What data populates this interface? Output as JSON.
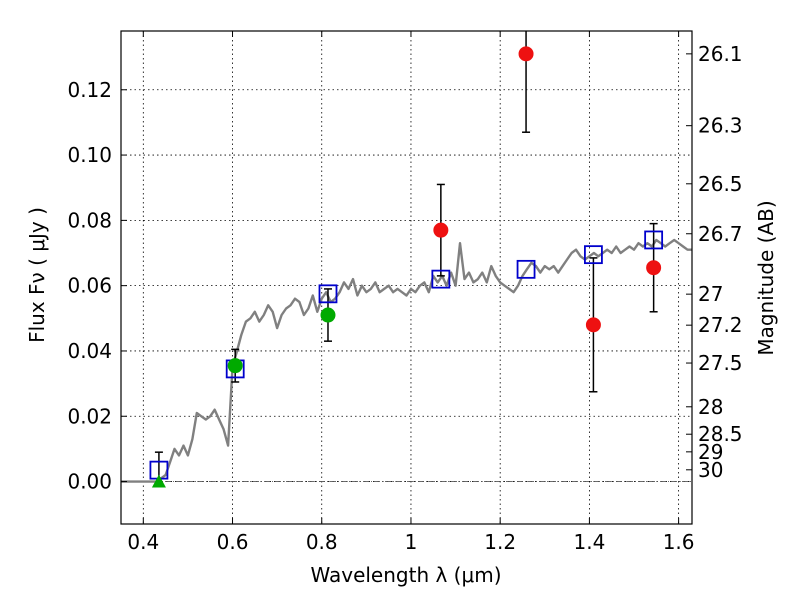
{
  "chart_data": {
    "type": "scatter",
    "xlabel": "Wavelength  λ (μm)",
    "ylabel": "Flux  Fν ( μJy )",
    "ylabel_right": "Magnitude (AB)",
    "xlim": [
      0.35,
      1.63
    ],
    "ylim": [
      -0.013,
      0.138
    ],
    "grid": true,
    "x_ticks": [
      0.4,
      0.6,
      0.8,
      1.0,
      1.2,
      1.4,
      1.6
    ],
    "x_tick_labels": [
      "0.4",
      "0.6",
      "0.8",
      "1",
      "1.2",
      "1.4",
      "1.6"
    ],
    "y_ticks": [
      0.0,
      0.02,
      0.04,
      0.06,
      0.08,
      0.1,
      0.12
    ],
    "y_tick_labels": [
      "0.00",
      "0.02",
      "0.04",
      "0.06",
      "0.08",
      "0.10",
      "0.12"
    ],
    "magnitude_ticks": [
      {
        "label": "26.1",
        "flux": 0.131
      },
      {
        "label": "26.3",
        "flux": 0.109
      },
      {
        "label": "26.5",
        "flux": 0.0912
      },
      {
        "label": "26.7",
        "flux": 0.0759
      },
      {
        "label": "27",
        "flux": 0.0574
      },
      {
        "label": "27.2",
        "flux": 0.0479
      },
      {
        "label": "27.5",
        "flux": 0.0363
      },
      {
        "label": "28",
        "flux": 0.0229
      },
      {
        "label": "28.5",
        "flux": 0.0145
      },
      {
        "label": "29",
        "flux": 0.0091
      },
      {
        "label": "30",
        "flux": 0.0036
      }
    ],
    "series": [
      {
        "kind": "model-spectrum",
        "color": "#808080",
        "x": [
          0.35,
          0.4,
          0.43,
          0.45,
          0.46,
          0.47,
          0.48,
          0.49,
          0.5,
          0.51,
          0.52,
          0.53,
          0.54,
          0.55,
          0.56,
          0.57,
          0.58,
          0.59,
          0.6,
          0.61,
          0.62,
          0.63,
          0.64,
          0.65,
          0.66,
          0.67,
          0.68,
          0.69,
          0.7,
          0.71,
          0.72,
          0.73,
          0.74,
          0.75,
          0.76,
          0.77,
          0.78,
          0.79,
          0.8,
          0.81,
          0.82,
          0.83,
          0.84,
          0.85,
          0.86,
          0.87,
          0.88,
          0.89,
          0.9,
          0.91,
          0.92,
          0.93,
          0.94,
          0.95,
          0.96,
          0.97,
          0.98,
          0.99,
          1.0,
          1.01,
          1.02,
          1.03,
          1.04,
          1.05,
          1.06,
          1.07,
          1.08,
          1.09,
          1.1,
          1.11,
          1.12,
          1.13,
          1.14,
          1.15,
          1.16,
          1.17,
          1.18,
          1.19,
          1.2,
          1.21,
          1.22,
          1.23,
          1.24,
          1.25,
          1.26,
          1.27,
          1.28,
          1.29,
          1.3,
          1.31,
          1.32,
          1.33,
          1.34,
          1.35,
          1.36,
          1.37,
          1.38,
          1.39,
          1.4,
          1.41,
          1.42,
          1.43,
          1.44,
          1.45,
          1.46,
          1.47,
          1.48,
          1.49,
          1.5,
          1.51,
          1.52,
          1.53,
          1.54,
          1.55,
          1.56,
          1.57,
          1.58,
          1.59,
          1.6,
          1.61,
          1.62,
          1.63
        ],
        "values": [
          0.0,
          0.0,
          0.0,
          0.002,
          0.006,
          0.01,
          0.008,
          0.011,
          0.008,
          0.013,
          0.021,
          0.02,
          0.019,
          0.02,
          0.022,
          0.019,
          0.016,
          0.011,
          0.035,
          0.04,
          0.045,
          0.049,
          0.05,
          0.052,
          0.049,
          0.051,
          0.054,
          0.052,
          0.047,
          0.051,
          0.053,
          0.054,
          0.056,
          0.055,
          0.051,
          0.053,
          0.057,
          0.052,
          0.056,
          0.058,
          0.055,
          0.056,
          0.058,
          0.061,
          0.059,
          0.062,
          0.057,
          0.06,
          0.058,
          0.059,
          0.061,
          0.058,
          0.059,
          0.06,
          0.058,
          0.059,
          0.058,
          0.057,
          0.059,
          0.058,
          0.06,
          0.061,
          0.058,
          0.063,
          0.061,
          0.063,
          0.06,
          0.064,
          0.06,
          0.073,
          0.062,
          0.064,
          0.061,
          0.062,
          0.064,
          0.061,
          0.066,
          0.063,
          0.061,
          0.06,
          0.059,
          0.058,
          0.06,
          0.063,
          0.065,
          0.067,
          0.066,
          0.064,
          0.066,
          0.065,
          0.066,
          0.064,
          0.066,
          0.068,
          0.07,
          0.071,
          0.069,
          0.068,
          0.069,
          0.07,
          0.069,
          0.07,
          0.071,
          0.07,
          0.072,
          0.07,
          0.071,
          0.072,
          0.071,
          0.073,
          0.072,
          0.073,
          0.072,
          0.074,
          0.073,
          0.072,
          0.073,
          0.074,
          0.073,
          0.072,
          0.071,
          0.071
        ]
      },
      {
        "kind": "model-photometry",
        "marker": "open-square",
        "color": "#0000cc",
        "x": [
          0.435,
          0.606,
          0.814,
          1.067,
          1.258,
          1.409,
          1.544
        ],
        "values": [
          0.0035,
          0.0345,
          0.0575,
          0.062,
          0.065,
          0.0695,
          0.074
        ]
      },
      {
        "kind": "observed-detection",
        "marker": "filled-circle",
        "color": "#00aa00",
        "x": [
          0.606,
          0.814
        ],
        "values": [
          0.0355,
          0.051
        ],
        "err": [
          0.005,
          0.008
        ]
      },
      {
        "kind": "observed-detection",
        "marker": "filled-circle",
        "color": "#ee1111",
        "x": [
          1.067,
          1.258,
          1.409,
          1.544
        ],
        "values": [
          0.077,
          0.131,
          0.048,
          0.0655
        ],
        "err": [
          0.014,
          0.024,
          0.0205,
          0.0135
        ]
      },
      {
        "kind": "observed-upper-limit",
        "marker": "filled-triangle",
        "color": "#00aa00",
        "x": [
          0.435
        ],
        "values": [
          0.0
        ],
        "err_up": [
          0.009
        ]
      }
    ]
  }
}
